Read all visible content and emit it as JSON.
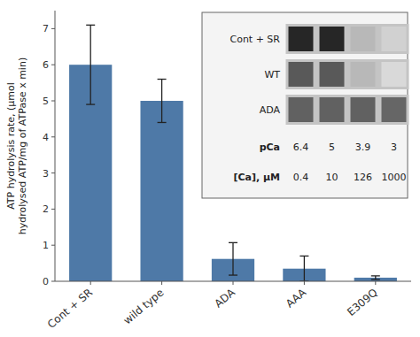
{
  "chart_data": [
    {
      "type": "bar",
      "categories": [
        "Cont + SR",
        "wild type",
        "ADA",
        "AAA",
        "E309Q"
      ],
      "values": [
        6.0,
        5.0,
        0.62,
        0.35,
        0.1
      ],
      "errors": [
        1.1,
        0.6,
        0.45,
        0.35,
        0.05
      ],
      "ylabel": "ATP hydrolysis rate, (µmol\nhydrolysed ATP/mg of ATPase x min)",
      "ylim": [
        0,
        7.5
      ],
      "yticks": [
        0,
        1,
        2,
        3,
        4,
        5,
        6,
        7
      ],
      "grid": false
    },
    {
      "type": "heatmap",
      "rows": [
        "Cont + SR",
        "WT",
        "ADA"
      ],
      "column_labels": [
        {
          "name": "pCa",
          "values": [
            6.4,
            5,
            3.9,
            3
          ]
        },
        {
          "name": "[Ca], µM",
          "values": [
            0.4,
            10,
            126,
            1000
          ]
        }
      ],
      "cells": [
        [
          0.15,
          0.15,
          0.72,
          0.82
        ],
        [
          0.35,
          0.35,
          0.72,
          0.85
        ],
        [
          0.38,
          0.38,
          0.38,
          0.4
        ]
      ]
    }
  ]
}
